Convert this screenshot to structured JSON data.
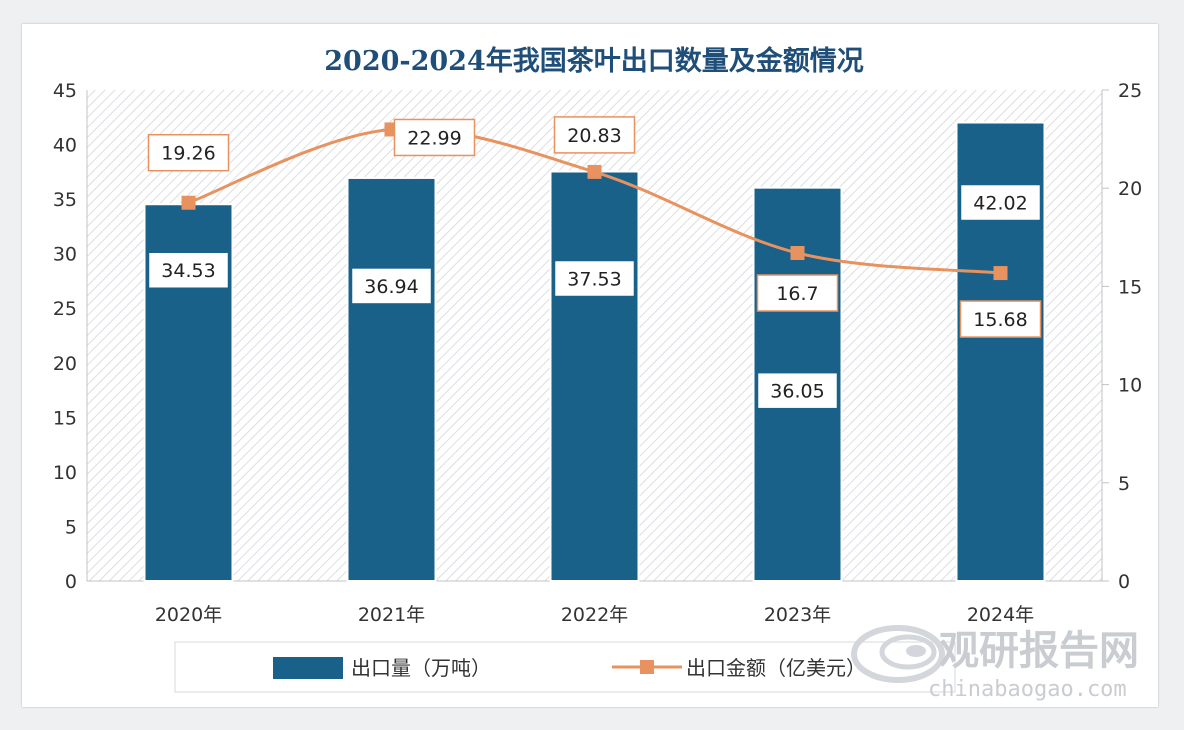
{
  "chart_data": {
    "type": "bar",
    "title": "2020-2024年我国茶叶出口数量及金额情况",
    "categories": [
      "2020年",
      "2021年",
      "2022年",
      "2023年",
      "2024年"
    ],
    "series": [
      {
        "name": "出口量（万吨）",
        "type": "bar",
        "axis": "left",
        "color": "#1a6189",
        "values": [
          34.53,
          36.94,
          37.53,
          36.05,
          42.02
        ],
        "labels": [
          "34.53",
          "36.94",
          "37.53",
          "36.05",
          "42.02"
        ]
      },
      {
        "name": "出口金额（亿美元）",
        "type": "line",
        "axis": "right",
        "color": "#e8925f",
        "values": [
          19.26,
          22.99,
          20.83,
          16.7,
          15.68
        ],
        "labels": [
          "19.26",
          "22.99",
          "20.83",
          "16.7",
          "15.68"
        ]
      }
    ],
    "y_left": {
      "min": 0,
      "max": 45,
      "ticks": [
        "0",
        "5",
        "10",
        "15",
        "20",
        "25",
        "30",
        "35",
        "40",
        "45"
      ]
    },
    "y_right": {
      "min": 0,
      "max": 25,
      "ticks": [
        "0",
        "5",
        "10",
        "15",
        "20",
        "25"
      ]
    },
    "grid": false,
    "plot_background": "hatched",
    "legend_position": "bottom"
  },
  "watermark": {
    "brand": "观研报告网",
    "url": "chinabaogao.com",
    "icon": "swirl-logo-icon"
  },
  "colors": {
    "title": "#1f4e79",
    "bar": "#1a6189",
    "line": "#e8925f",
    "bar_label_border": "#1a6189",
    "line_label_border": "#e8925f"
  }
}
